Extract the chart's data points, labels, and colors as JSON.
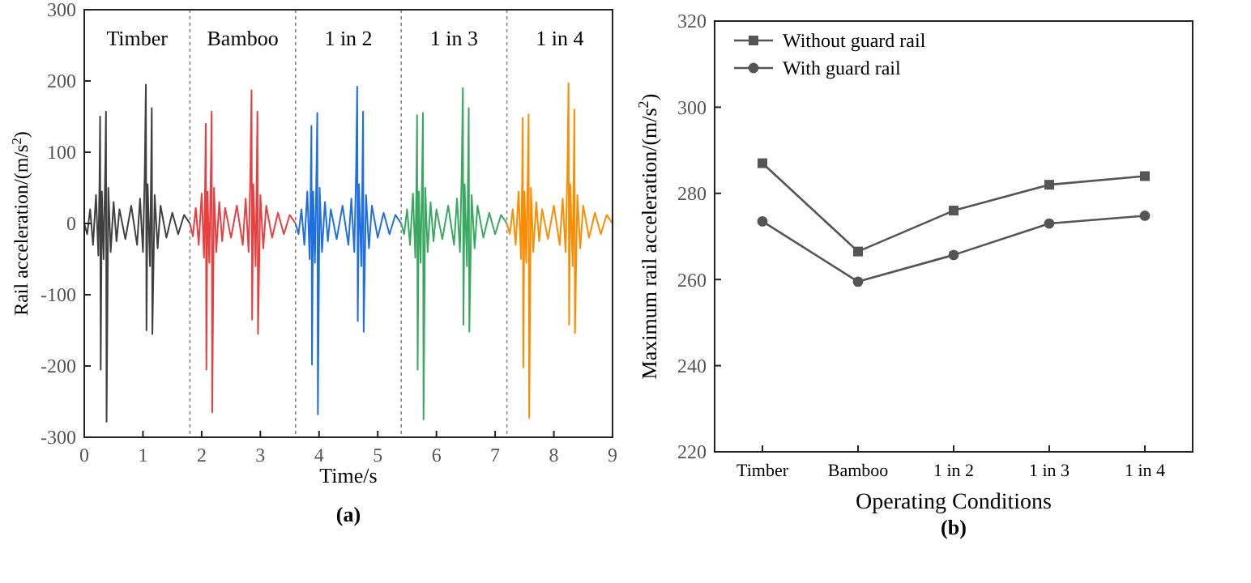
{
  "chart_data": [
    {
      "type": "line",
      "xlabel": "Time/s",
      "ylabel": "Rail acceleration/(m/s$^{2}$)",
      "xlim": [
        0,
        9
      ],
      "xticks": [
        0,
        1,
        2,
        3,
        4,
        5,
        6,
        7,
        8,
        9
      ],
      "ylim": [
        -300,
        300
      ],
      "yticks": [
        -300,
        -200,
        -100,
        0,
        100,
        200,
        300
      ],
      "grid": false,
      "legend": false,
      "annotations": [
        "(a)"
      ],
      "ref_lines": [
        {
          "axis": "x",
          "value": 1.8,
          "color": "#888888",
          "line_style": "dotted"
        },
        {
          "axis": "x",
          "value": 3.6,
          "color": "#888888",
          "line_style": "dotted"
        },
        {
          "axis": "x",
          "value": 5.4,
          "color": "#888888",
          "line_style": "dotted"
        },
        {
          "axis": "x",
          "value": 7.2,
          "color": "#888888",
          "line_style": "dotted"
        }
      ],
      "series": [
        {
          "name": "Timber",
          "color": "#404040",
          "x": [
            0,
            0.05,
            0.1,
            0.15,
            0.2,
            0.24,
            0.26,
            0.27,
            0.28,
            0.3,
            0.33,
            0.36,
            0.37,
            0.38,
            0.41,
            0.45,
            0.5,
            0.55,
            0.6,
            0.7,
            0.8,
            0.9,
            0.95,
            1.0,
            1.03,
            1.05,
            1.06,
            1.08,
            1.12,
            1.14,
            1.15,
            1.16,
            1.2,
            1.25,
            1.3,
            1.4,
            1.5,
            1.6,
            1.7,
            1.8
          ],
          "values": [
            0,
            -15,
            20,
            -30,
            40,
            -45,
            60,
            150,
            -205,
            45,
            -50,
            90,
            157,
            -278,
            50,
            -40,
            30,
            -25,
            20,
            -22,
            25,
            -30,
            35,
            -40,
            70,
            195,
            -150,
            55,
            -60,
            80,
            162,
            -155,
            40,
            -35,
            25,
            -20,
            15,
            -15,
            12,
            0
          ]
        },
        {
          "name": "Bamboo",
          "color": "#e84040",
          "x": [
            1.8,
            1.85,
            1.9,
            1.95,
            2.0,
            2.04,
            2.06,
            2.07,
            2.08,
            2.1,
            2.13,
            2.16,
            2.17,
            2.18,
            2.21,
            2.25,
            2.3,
            2.35,
            2.4,
            2.5,
            2.6,
            2.7,
            2.75,
            2.8,
            2.83,
            2.85,
            2.86,
            2.88,
            2.92,
            2.94,
            2.95,
            2.96,
            3.0,
            3.05,
            3.1,
            3.2,
            3.3,
            3.4,
            3.5,
            3.6
          ],
          "values": [
            0,
            -18,
            22,
            -30,
            42,
            -48,
            60,
            140,
            -205,
            45,
            -55,
            90,
            157,
            -265,
            50,
            -40,
            30,
            -25,
            22,
            -20,
            25,
            -30,
            35,
            -40,
            70,
            187,
            -135,
            55,
            -60,
            80,
            157,
            -155,
            40,
            -35,
            25,
            -20,
            15,
            -15,
            12,
            0
          ]
        },
        {
          "name": "1 in 2",
          "color": "#1f6fe0",
          "x": [
            3.6,
            3.65,
            3.7,
            3.75,
            3.8,
            3.84,
            3.86,
            3.87,
            3.88,
            3.9,
            3.93,
            3.96,
            3.97,
            3.98,
            4.01,
            4.05,
            4.1,
            4.15,
            4.2,
            4.3,
            4.4,
            4.5,
            4.55,
            4.6,
            4.63,
            4.65,
            4.66,
            4.68,
            4.72,
            4.74,
            4.75,
            4.76,
            4.8,
            4.85,
            4.9,
            5.0,
            5.1,
            5.2,
            5.3,
            5.4
          ],
          "values": [
            0,
            -15,
            20,
            -30,
            45,
            -50,
            65,
            137,
            -198,
            45,
            -55,
            95,
            155,
            -268,
            50,
            -40,
            30,
            -25,
            20,
            -22,
            25,
            -30,
            35,
            -40,
            70,
            192,
            -137,
            55,
            -60,
            80,
            157,
            -152,
            40,
            -35,
            25,
            -20,
            15,
            -15,
            12,
            0
          ]
        },
        {
          "name": "1 in 3",
          "color": "#3aa860",
          "x": [
            5.4,
            5.45,
            5.5,
            5.55,
            5.6,
            5.64,
            5.66,
            5.67,
            5.68,
            5.7,
            5.73,
            5.76,
            5.77,
            5.78,
            5.81,
            5.85,
            5.9,
            5.95,
            6.0,
            6.1,
            6.2,
            6.3,
            6.35,
            6.4,
            6.43,
            6.45,
            6.46,
            6.48,
            6.52,
            6.54,
            6.55,
            6.56,
            6.6,
            6.65,
            6.7,
            6.8,
            6.9,
            7.0,
            7.1,
            7.2
          ],
          "values": [
            0,
            -15,
            20,
            -30,
            42,
            -48,
            60,
            152,
            -205,
            45,
            -55,
            90,
            155,
            -275,
            50,
            -40,
            30,
            -25,
            20,
            -22,
            25,
            -30,
            35,
            -40,
            70,
            190,
            -142,
            55,
            -60,
            80,
            162,
            -152,
            40,
            -35,
            25,
            -20,
            15,
            -15,
            12,
            0
          ]
        },
        {
          "name": "1 in 4",
          "color": "#ff8c00",
          "x": [
            7.2,
            7.25,
            7.3,
            7.35,
            7.4,
            7.44,
            7.46,
            7.47,
            7.48,
            7.5,
            7.53,
            7.56,
            7.57,
            7.58,
            7.61,
            7.65,
            7.7,
            7.75,
            7.8,
            7.9,
            8.0,
            8.1,
            8.15,
            8.2,
            8.23,
            8.25,
            8.26,
            8.28,
            8.32,
            8.34,
            8.35,
            8.36,
            8.4,
            8.45,
            8.5,
            8.6,
            8.7,
            8.8,
            8.9,
            9.0
          ],
          "values": [
            0,
            -15,
            20,
            -30,
            45,
            -50,
            62,
            148,
            -202,
            45,
            -55,
            92,
            153,
            -273,
            50,
            -40,
            30,
            -25,
            20,
            -22,
            25,
            -30,
            35,
            -40,
            70,
            197,
            -142,
            55,
            -60,
            80,
            160,
            -154,
            40,
            -35,
            25,
            -20,
            15,
            -15,
            12,
            0
          ]
        }
      ]
    },
    {
      "type": "line",
      "xlabel": "Operating Conditions",
      "ylabel": "Maximum rail acceleration/(m/s$^{2}$)",
      "categories": [
        "Timber",
        "Bamboo",
        "1 in 2",
        "1 in 3",
        "1 in 4"
      ],
      "ylim": [
        220,
        320
      ],
      "yticks": [
        220,
        240,
        260,
        280,
        300,
        320
      ],
      "grid": false,
      "legend": "top left",
      "annotations": [
        "(b)"
      ],
      "series": [
        {
          "name": "Without guard rail",
          "color": "#555555",
          "marker": "square",
          "values": [
            287,
            266.5,
            276,
            282,
            284
          ]
        },
        {
          "name": "With guard rail",
          "color": "#555555",
          "marker": "circle",
          "values": [
            273.5,
            259.5,
            265.7,
            273,
            274.8
          ]
        }
      ]
    }
  ]
}
